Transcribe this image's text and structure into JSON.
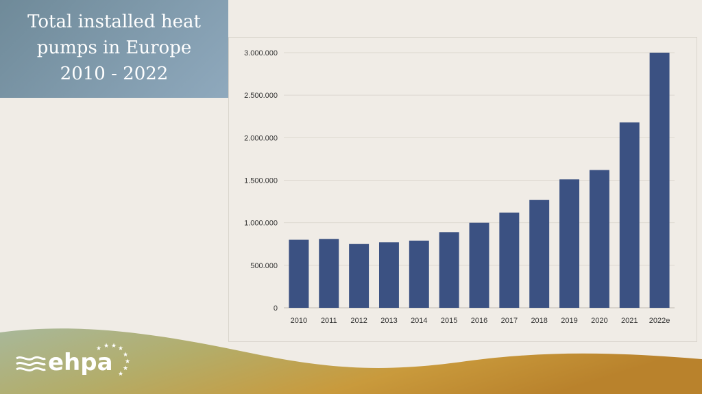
{
  "title": "Total installed heat\npumps in Europe\n2010 - 2022",
  "logo": {
    "text": "ehpa",
    "icon": "ehpa-logo-waves-stars"
  },
  "colors": {
    "bar": "#3b5182",
    "title_bg": "#7f9aac",
    "wave_start": "#9aa98a",
    "wave_end": "#c48a2e",
    "background": "#f0ece6"
  },
  "chart_data": {
    "type": "bar",
    "title": "",
    "xlabel": "",
    "ylabel": "",
    "categories": [
      "2010",
      "2011",
      "2012",
      "2013",
      "2014",
      "2015",
      "2016",
      "2017",
      "2018",
      "2019",
      "2020",
      "2021",
      "2022e"
    ],
    "values": [
      800000,
      810000,
      750000,
      770000,
      790000,
      890000,
      1000000,
      1120000,
      1270000,
      1510000,
      1620000,
      2180000,
      3000000
    ],
    "ylim": [
      0,
      3000000
    ],
    "yticks": [
      0,
      500000,
      1000000,
      1500000,
      2000000,
      2500000,
      3000000
    ],
    "ytick_labels": [
      "0",
      "500.000",
      "1.000.000",
      "1.500.000",
      "2.000.000",
      "2.500.000",
      "3.000.000"
    ],
    "grid": true,
    "legend": "none"
  }
}
